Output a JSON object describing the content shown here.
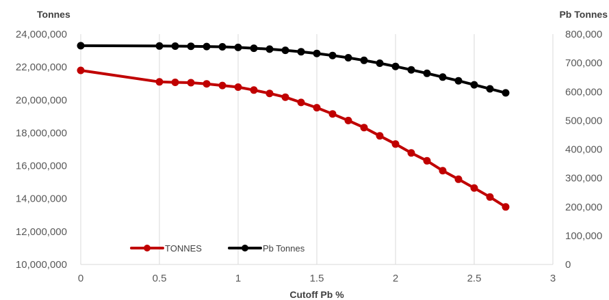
{
  "chart_data": {
    "type": "line",
    "title": "",
    "xlabel": "Cutoff Pb %",
    "ylabel_left": "Tonnes",
    "ylabel_right": "Pb Tonnes",
    "xlim": [
      0,
      3
    ],
    "ylim_left": [
      10000000,
      24000000
    ],
    "ylim_right": [
      0,
      800000
    ],
    "x_ticks": [
      "0",
      "0.5",
      "1",
      "1.5",
      "2",
      "2.5",
      "3"
    ],
    "y_left_ticks": [
      "10,000,000",
      "12,000,000",
      "14,000,000",
      "16,000,000",
      "18,000,000",
      "20,000,000",
      "22,000,000",
      "24,000,000"
    ],
    "y_right_ticks": [
      "0",
      "100,000",
      "200,000",
      "300,000",
      "400,000",
      "500,000",
      "600,000",
      "700,000",
      "800,000"
    ],
    "grid": "vertical",
    "legend_position": "bottom-left",
    "series": [
      {
        "name": "TONNES",
        "axis": "left",
        "color": "#C00000",
        "x": [
          0,
          0.5,
          0.6,
          0.7,
          0.8,
          0.9,
          1.0,
          1.1,
          1.2,
          1.3,
          1.4,
          1.5,
          1.6,
          1.7,
          1.8,
          1.9,
          2.0,
          2.1,
          2.2,
          2.3,
          2.4,
          2.5,
          2.6,
          2.7
        ],
        "values": [
          21800000,
          21100000,
          21070000,
          21050000,
          20980000,
          20880000,
          20780000,
          20600000,
          20400000,
          20170000,
          19850000,
          19530000,
          19150000,
          18750000,
          18320000,
          17820000,
          17320000,
          16780000,
          16300000,
          15700000,
          15180000,
          14650000,
          14100000,
          13500000
        ]
      },
      {
        "name": "Pb Tonnes",
        "axis": "right",
        "color": "#000000",
        "x": [
          0,
          0.5,
          0.6,
          0.7,
          0.8,
          0.9,
          1.0,
          1.1,
          1.2,
          1.3,
          1.4,
          1.5,
          1.6,
          1.7,
          1.8,
          1.9,
          2.0,
          2.1,
          2.2,
          2.3,
          2.4,
          2.5,
          2.6,
          2.7
        ],
        "values": [
          760000,
          759000,
          758500,
          758000,
          757000,
          756000,
          754000,
          751000,
          748000,
          744000,
          739000,
          733000,
          726000,
          718000,
          709000,
          699000,
          688000,
          676000,
          664000,
          651000,
          638000,
          624000,
          610000,
          596000
        ]
      }
    ]
  }
}
